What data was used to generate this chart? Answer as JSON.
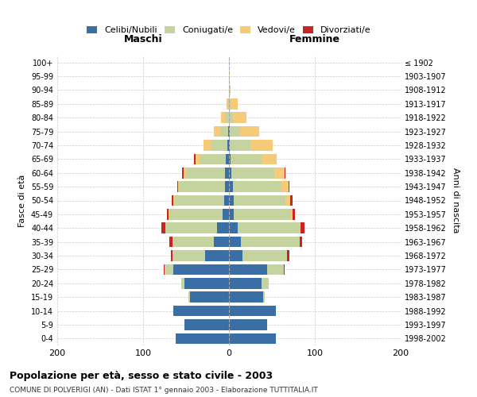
{
  "title": "Popolazione per età, sesso e stato civile - 2003",
  "subtitle": "COMUNE DI POLVERIGI (AN) - Dati ISTAT 1° gennaio 2003 - Elaborazione TUTTITALIA.IT",
  "xlabel_left": "Maschi",
  "xlabel_right": "Femmine",
  "ylabel": "Fasce di età",
  "ylabel_right": "Anni di nascita",
  "age_groups": [
    "0-4",
    "5-9",
    "10-14",
    "15-19",
    "20-24",
    "25-29",
    "30-34",
    "35-39",
    "40-44",
    "45-49",
    "50-54",
    "55-59",
    "60-64",
    "65-69",
    "70-74",
    "75-79",
    "80-84",
    "85-89",
    "90-94",
    "95-99",
    "100+"
  ],
  "birth_years": [
    "1998-2002",
    "1993-1997",
    "1988-1992",
    "1983-1987",
    "1978-1982",
    "1973-1977",
    "1968-1972",
    "1963-1967",
    "1958-1962",
    "1953-1957",
    "1948-1952",
    "1943-1947",
    "1938-1942",
    "1933-1937",
    "1928-1932",
    "1923-1927",
    "1918-1922",
    "1913-1917",
    "1908-1912",
    "1903-1907",
    "≤ 1902"
  ],
  "colors": {
    "celibi": "#3a6fa6",
    "coniugati": "#c5d49e",
    "vedovi": "#f5cb7a",
    "divorziati": "#cc2222"
  },
  "legend_labels": [
    "Celibi/Nubili",
    "Coniugati/e",
    "Vedovi/e",
    "Divorziati/e"
  ],
  "males": {
    "celibi": [
      62,
      52,
      65,
      45,
      52,
      65,
      28,
      18,
      14,
      7,
      6,
      5,
      5,
      4,
      2,
      1,
      0,
      0,
      0,
      0,
      0
    ],
    "coniugati": [
      0,
      0,
      0,
      2,
      4,
      10,
      38,
      48,
      60,
      62,
      58,
      52,
      45,
      30,
      18,
      9,
      5,
      1,
      0,
      0,
      0
    ],
    "vedovi": [
      0,
      0,
      0,
      0,
      0,
      0,
      0,
      0,
      0,
      1,
      1,
      2,
      3,
      5,
      10,
      8,
      4,
      2,
      0,
      0,
      0
    ],
    "divorziati": [
      0,
      0,
      0,
      0,
      0,
      1,
      2,
      3,
      5,
      2,
      2,
      1,
      2,
      2,
      0,
      0,
      0,
      0,
      0,
      0,
      0
    ]
  },
  "females": {
    "nubili": [
      55,
      44,
      55,
      40,
      38,
      44,
      16,
      14,
      10,
      6,
      6,
      5,
      3,
      2,
      1,
      1,
      0,
      0,
      0,
      0,
      0
    ],
    "coniugate": [
      0,
      0,
      0,
      2,
      8,
      20,
      52,
      68,
      72,
      66,
      60,
      56,
      50,
      36,
      24,
      12,
      5,
      2,
      0,
      0,
      0
    ],
    "vedove": [
      0,
      0,
      0,
      0,
      0,
      0,
      0,
      0,
      1,
      2,
      5,
      8,
      12,
      18,
      26,
      22,
      15,
      8,
      2,
      1,
      0
    ],
    "divorziate": [
      0,
      0,
      0,
      0,
      0,
      1,
      2,
      3,
      5,
      3,
      3,
      1,
      1,
      0,
      0,
      0,
      0,
      0,
      0,
      0,
      0
    ]
  },
  "xlim": 200,
  "background_color": "#ffffff",
  "grid_color": "#cccccc"
}
